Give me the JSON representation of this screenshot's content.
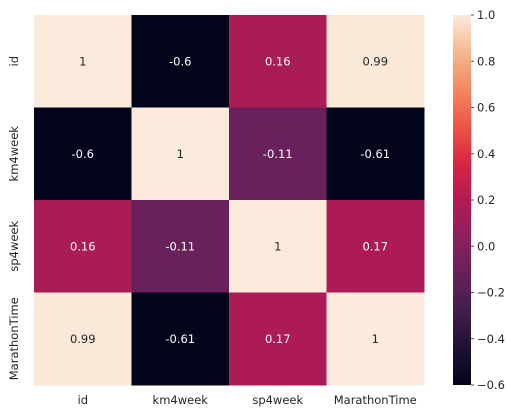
{
  "chart_data": {
    "type": "heatmap",
    "title": "",
    "xlabel": "",
    "ylabel": "",
    "x_categories": [
      "id",
      "km4week",
      "sp4week",
      "MarathonTime"
    ],
    "y_categories": [
      "id",
      "km4week",
      "sp4week",
      "MarathonTime"
    ],
    "values": [
      [
        1,
        -0.6,
        0.16,
        0.99
      ],
      [
        -0.6,
        1,
        -0.11,
        -0.61
      ],
      [
        0.16,
        -0.11,
        1,
        0.17
      ],
      [
        0.99,
        -0.61,
        0.17,
        1
      ]
    ],
    "annotations": [
      [
        "1",
        "-0.6",
        "0.16",
        "0.99"
      ],
      [
        "-0.6",
        "1",
        "-0.11",
        "-0.61"
      ],
      [
        "0.16",
        "-0.11",
        "1",
        "0.17"
      ],
      [
        "0.99",
        "-0.61",
        "0.17",
        "1"
      ]
    ],
    "colormap": "rocket",
    "vmin": -0.6,
    "vmax": 1.0,
    "colorbar": {
      "ticks": [
        -0.6,
        -0.4,
        -0.2,
        0.0,
        0.2,
        0.4,
        0.6,
        0.8,
        1.0
      ],
      "tick_labels": [
        "−0.6",
        "−0.4",
        "−0.2",
        "0.0",
        "0.2",
        "0.4",
        "0.6",
        "0.8",
        "1.0"
      ]
    },
    "grid": false
  }
}
